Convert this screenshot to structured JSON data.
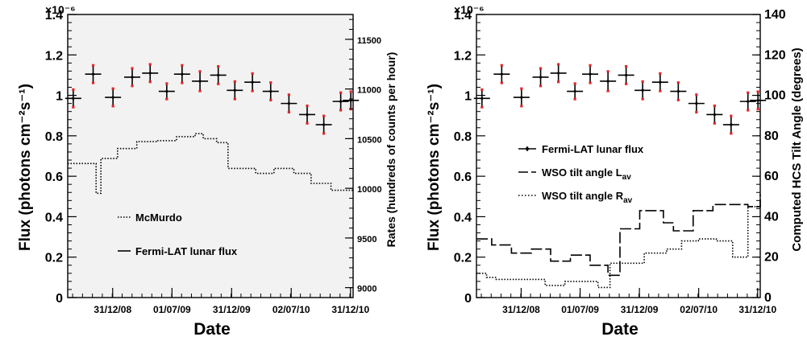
{
  "chart_data": [
    {
      "type": "line",
      "panel": "left",
      "title": "",
      "xlabel": "Date",
      "ylabel": "Flux (photons cm⁻²s⁻¹)",
      "y2label": "Rates (hundreds of counts per hour)",
      "y_exponent": "×10⁻⁶",
      "xlim": [
        "2008-08-15",
        "2011-01-08"
      ],
      "ylim": [
        0,
        1.4
      ],
      "y2lim": [
        8900,
        11750
      ],
      "x_ticklabels": [
        "31/12/08",
        "01/07/09",
        "31/12/09",
        "02/07/10",
        "31/12/10"
      ],
      "y_ticklabels": [
        "0",
        "0.2",
        "0.4",
        "0.6",
        "0.8",
        "1",
        "1.2",
        "1.4"
      ],
      "y2_ticklabels": [
        "9000",
        "9500",
        "10000",
        "10500",
        "11000",
        "11500"
      ],
      "grid": false,
      "background": "#f2f2f2",
      "legend": {
        "placement": "bottom-center",
        "entries": [
          "McMurdo",
          "Fermi-LAT lunar flux"
        ]
      },
      "series": [
        {
          "name": "Fermi-LAT lunar flux",
          "style": "points-with-errorbars",
          "x": [
            "2008-09-01",
            "2008-11-01",
            "2009-01-01",
            "2009-03-01",
            "2009-04-25",
            "2009-06-15",
            "2009-08-01",
            "2009-09-25",
            "2009-11-20",
            "2010-01-10",
            "2010-03-05",
            "2010-04-30",
            "2010-06-25",
            "2010-08-20",
            "2010-10-10",
            "2010-12-01",
            "2011-01-01"
          ],
          "values": [
            0.985,
            1.105,
            0.99,
            1.09,
            1.11,
            1.02,
            1.105,
            1.07,
            1.1,
            1.025,
            1.065,
            1.02,
            0.96,
            0.905,
            0.855,
            0.97,
            0.975
          ],
          "yerr": [
            0.04,
            0.04,
            0.04,
            0.04,
            0.04,
            0.035,
            0.04,
            0.045,
            0.04,
            0.04,
            0.04,
            0.04,
            0.04,
            0.04,
            0.04,
            0.04,
            0.04
          ]
        },
        {
          "name": "McMurdo",
          "style": "dotted-step",
          "axis": "right",
          "edges": [
            "2008-08-15",
            "2008-10-15",
            "2008-11-10",
            "2008-11-25",
            "2009-01-15",
            "2009-03-15",
            "2009-05-15",
            "2009-07-15",
            "2009-09-10",
            "2009-10-05",
            "2009-11-15",
            "2009-12-20",
            "2010-03-15",
            "2010-05-10",
            "2010-07-10",
            "2010-09-01",
            "2010-11-01",
            "2011-01-08"
          ],
          "values": [
            10250,
            10250,
            9950,
            10300,
            10400,
            10470,
            10480,
            10520,
            10550,
            10500,
            10460,
            10200,
            10150,
            10200,
            10150,
            10050,
            9980
          ]
        }
      ]
    },
    {
      "type": "line",
      "panel": "right",
      "title": "",
      "xlabel": "Date",
      "ylabel": "Flux (photons cm⁻²s⁻¹)",
      "y2label": "Computed HCS Tilt Angle (degrees)",
      "y_exponent": "×10⁻⁶",
      "xlim": [
        "2008-08-15",
        "2011-01-08"
      ],
      "ylim": [
        0,
        1.4
      ],
      "y2lim": [
        0,
        140
      ],
      "x_ticklabels": [
        "31/12/08",
        "01/07/09",
        "31/12/09",
        "02/07/10",
        "31/12/10"
      ],
      "y_ticklabels": [
        "0",
        "0.2",
        "0.4",
        "0.6",
        "0.8",
        "1",
        "1.2",
        "1.4"
      ],
      "y2_ticklabels": [
        "0",
        "20",
        "40",
        "60",
        "80",
        "100",
        "120",
        "140"
      ],
      "grid": false,
      "background": "#ffffff",
      "legend": {
        "placement": "center",
        "entries": [
          "Fermi-LAT lunar flux",
          "WSO tilt angle L",
          "WSO tilt angle R"
        ],
        "subscripts": [
          "",
          "av",
          "av"
        ]
      },
      "series": [
        {
          "name": "Fermi-LAT lunar flux",
          "style": "points-with-errorbars",
          "x": [
            "2008-09-01",
            "2008-11-01",
            "2009-01-01",
            "2009-03-01",
            "2009-04-25",
            "2009-06-15",
            "2009-08-01",
            "2009-09-25",
            "2009-11-20",
            "2010-01-10",
            "2010-03-05",
            "2010-04-30",
            "2010-06-25",
            "2010-08-20",
            "2010-10-10",
            "2010-12-01",
            "2011-01-01"
          ],
          "values": [
            0.985,
            1.105,
            0.99,
            1.09,
            1.11,
            1.02,
            1.105,
            1.07,
            1.1,
            1.025,
            1.065,
            1.02,
            0.96,
            0.905,
            0.855,
            0.97,
            0.975
          ],
          "yerr": [
            0.04,
            0.04,
            0.04,
            0.04,
            0.04,
            0.035,
            0.04,
            0.045,
            0.04,
            0.04,
            0.04,
            0.04,
            0.04,
            0.04,
            0.04,
            0.04,
            0.04
          ]
        },
        {
          "name": "WSO tilt angle Lav",
          "style": "dashed-step",
          "axis": "right",
          "edges": [
            "2008-08-15",
            "2008-10-01",
            "2008-12-01",
            "2009-02-01",
            "2009-04-01",
            "2009-06-01",
            "2009-08-01",
            "2009-09-25",
            "2009-11-01",
            "2010-01-01",
            "2010-03-15",
            "2010-04-15",
            "2010-06-15",
            "2010-08-15",
            "2010-12-01",
            "2011-01-08"
          ],
          "values": [
            29,
            26,
            22,
            24,
            18,
            21,
            16,
            11,
            34,
            43,
            37,
            33,
            43,
            46,
            45,
            51
          ]
        },
        {
          "name": "WSO tilt angle Rav",
          "style": "dotted-step",
          "axis": "right",
          "edges": [
            "2008-08-15",
            "2008-09-15",
            "2008-10-15",
            "2009-03-15",
            "2009-05-15",
            "2009-07-15",
            "2009-08-25",
            "2009-10-01",
            "2009-11-01",
            "2010-01-15",
            "2010-03-25",
            "2010-05-10",
            "2010-07-01",
            "2010-08-25",
            "2010-10-15",
            "2010-12-01",
            "2011-01-08"
          ],
          "values": [
            12,
            10,
            9,
            6,
            8,
            8,
            5,
            17,
            17,
            22,
            24,
            28,
            29,
            28,
            20,
            45,
            46
          ]
        }
      ]
    }
  ]
}
